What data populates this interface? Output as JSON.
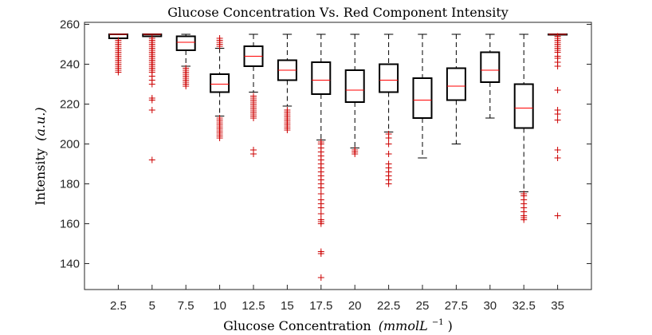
{
  "chart_data": {
    "type": "boxplot",
    "title": "Glucose Concentration Vs. Red Component Intensity",
    "xlabel_text": "Glucose Concentration",
    "xlabel_unit": "(mmolL",
    "xlabel_exp": "−1",
    "xlabel_close": ")",
    "ylabel_text": "Intensity",
    "ylabel_unit": "(a.u.)",
    "categories": [
      "2.5",
      "5",
      "7.5",
      "10",
      "12.5",
      "15",
      "17.5",
      "20",
      "22.5",
      "25",
      "27.5",
      "30",
      "32.5",
      "35"
    ],
    "y_ticks": [
      140,
      160,
      180,
      200,
      220,
      240,
      260
    ],
    "ylim": [
      127,
      261
    ],
    "grid": false,
    "colors": {
      "box": "#000000",
      "median": "#ff0000",
      "outlier": "#cc0000",
      "axis": "#262626"
    },
    "boxes": [
      {
        "category": "2.5",
        "whisker_low": 253,
        "q1": 253,
        "median": 255,
        "q3": 255,
        "whisker_high": 255,
        "outliers": [
          236,
          237,
          238,
          239,
          240,
          241,
          242,
          243,
          244,
          245,
          246,
          247,
          248,
          249,
          250,
          251,
          252
        ]
      },
      {
        "category": "5",
        "whisker_low": 254,
        "q1": 254,
        "median": 255,
        "q3": 255,
        "whisker_high": 255,
        "outliers": [
          192,
          217,
          222,
          223,
          230,
          232,
          234,
          236,
          237,
          238,
          239,
          240,
          241,
          242,
          243,
          244,
          245,
          246,
          247,
          248,
          249,
          250,
          251,
          252,
          253
        ]
      },
      {
        "category": "7.5",
        "whisker_low": 239,
        "q1": 247,
        "median": 251,
        "q3": 254,
        "whisker_high": 255,
        "outliers": [
          229,
          230,
          231,
          232,
          233,
          234,
          235,
          236,
          237,
          238
        ]
      },
      {
        "category": "10",
        "whisker_low": 214,
        "q1": 226,
        "median": 230,
        "q3": 235,
        "whisker_high": 248,
        "outliers": [
          203,
          204,
          205,
          206,
          207,
          208,
          209,
          210,
          211,
          212,
          213,
          249,
          250,
          251,
          252,
          253
        ]
      },
      {
        "category": "12.5",
        "whisker_low": 226,
        "q1": 239,
        "median": 244,
        "q3": 249,
        "whisker_high": 255,
        "outliers": [
          195,
          197,
          213,
          214,
          215,
          216,
          217,
          218,
          219,
          220,
          221,
          222,
          223,
          224
        ]
      },
      {
        "category": "15",
        "whisker_low": 219,
        "q1": 232,
        "median": 237,
        "q3": 242,
        "whisker_high": 255,
        "outliers": [
          207,
          208,
          209,
          210,
          211,
          212,
          213,
          214,
          215,
          216,
          217
        ]
      },
      {
        "category": "17.5",
        "whisker_low": 202,
        "q1": 225,
        "median": 232,
        "q3": 241,
        "whisker_high": 255,
        "outliers": [
          133,
          145,
          146,
          160,
          161,
          162,
          165,
          168,
          170,
          172,
          175,
          178,
          180,
          182,
          184,
          186,
          188,
          190,
          192,
          194,
          196,
          198,
          200,
          201
        ]
      },
      {
        "category": "20",
        "whisker_low": 198,
        "q1": 221,
        "median": 227,
        "q3": 237,
        "whisker_high": 255,
        "outliers": [
          195,
          196,
          197
        ]
      },
      {
        "category": "22.5",
        "whisker_low": 206,
        "q1": 226,
        "median": 232,
        "q3": 240,
        "whisker_high": 255,
        "outliers": [
          180,
          182,
          184,
          186,
          188,
          190,
          195,
          200,
          203,
          205
        ]
      },
      {
        "category": "25",
        "whisker_low": 193,
        "q1": 213,
        "median": 222,
        "q3": 233,
        "whisker_high": 255,
        "outliers": []
      },
      {
        "category": "27.5",
        "whisker_low": 200,
        "q1": 222,
        "median": 229,
        "q3": 238,
        "whisker_high": 255,
        "outliers": []
      },
      {
        "category": "30",
        "whisker_low": 213,
        "q1": 231,
        "median": 237,
        "q3": 246,
        "whisker_high": 255,
        "outliers": []
      },
      {
        "category": "32.5",
        "whisker_low": 176,
        "q1": 208,
        "median": 218,
        "q3": 230,
        "whisker_high": 255,
        "outliers": [
          162,
          163,
          164,
          166,
          168,
          170,
          172,
          174,
          175
        ]
      },
      {
        "category": "35",
        "whisker_low": 255,
        "q1": 255,
        "median": 255,
        "q3": 255,
        "whisker_high": 255,
        "outliers": [
          164,
          193,
          197,
          212,
          215,
          217,
          227,
          239,
          241,
          243,
          244,
          246,
          247,
          248,
          249,
          250,
          251,
          252,
          253,
          254
        ]
      }
    ]
  }
}
